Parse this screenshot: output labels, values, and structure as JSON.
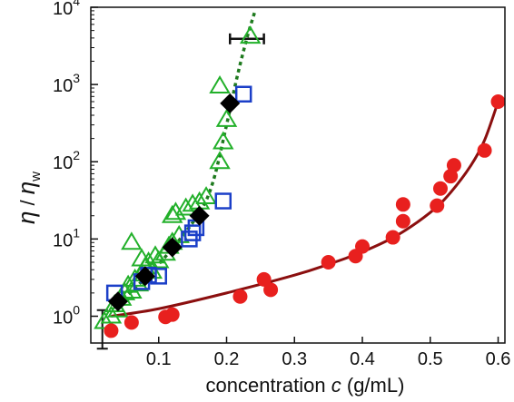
{
  "chart_data": {
    "type": "scatter",
    "xlabel_prefix": "concentration ",
    "xlabel_var": "c",
    "xlabel_suffix": " (g/mL)",
    "ylabel_num": "η",
    "ylabel_sep": " / ",
    "ylabel_den": "η",
    "ylabel_den_sub": "w",
    "xlim": [
      0.0,
      0.61
    ],
    "ylim": [
      0.45,
      10000
    ],
    "yscale": "log",
    "x_ticks": [
      {
        "value": 0.1,
        "label": "0.1"
      },
      {
        "value": 0.2,
        "label": "0.2"
      },
      {
        "value": 0.3,
        "label": "0.3"
      },
      {
        "value": 0.4,
        "label": "0.4"
      },
      {
        "value": 0.5,
        "label": "0.5"
      },
      {
        "value": 0.6,
        "label": "0.6"
      }
    ],
    "y_ticks": [
      {
        "value": 1,
        "base": "10",
        "exp": "0"
      },
      {
        "value": 10,
        "base": "10",
        "exp": "1"
      },
      {
        "value": 100,
        "base": "10",
        "exp": "2"
      },
      {
        "value": 1000,
        "base": "10",
        "exp": "3"
      },
      {
        "value": 10000,
        "base": "10",
        "exp": "4"
      }
    ],
    "grid": false,
    "legend": "none",
    "series": [
      {
        "marker": "circle",
        "color": "#e8201e",
        "points": [
          {
            "x": 0.03,
            "y": 0.65
          },
          {
            "x": 0.06,
            "y": 0.83
          },
          {
            "x": 0.11,
            "y": 0.98
          },
          {
            "x": 0.12,
            "y": 1.05
          },
          {
            "x": 0.22,
            "y": 1.8
          },
          {
            "x": 0.255,
            "y": 3.0
          },
          {
            "x": 0.265,
            "y": 2.2
          },
          {
            "x": 0.35,
            "y": 5.0
          },
          {
            "x": 0.39,
            "y": 6.0
          },
          {
            "x": 0.4,
            "y": 8.0
          },
          {
            "x": 0.445,
            "y": 10.5
          },
          {
            "x": 0.46,
            "y": 17
          },
          {
            "x": 0.46,
            "y": 28
          },
          {
            "x": 0.51,
            "y": 27
          },
          {
            "x": 0.515,
            "y": 45
          },
          {
            "x": 0.53,
            "y": 65
          },
          {
            "x": 0.535,
            "y": 90
          },
          {
            "x": 0.58,
            "y": 140
          },
          {
            "x": 0.6,
            "y": 600
          }
        ]
      },
      {
        "marker": "triangle",
        "color": "#22b02a",
        "points": [
          {
            "x": 0.02,
            "y": 0.85
          },
          {
            "x": 0.03,
            "y": 1.0
          },
          {
            "x": 0.035,
            "y": 1.4
          },
          {
            "x": 0.04,
            "y": 1.2
          },
          {
            "x": 0.045,
            "y": 1.7
          },
          {
            "x": 0.05,
            "y": 2.0
          },
          {
            "x": 0.055,
            "y": 2.5
          },
          {
            "x": 0.06,
            "y": 2.1
          },
          {
            "x": 0.065,
            "y": 3.0
          },
          {
            "x": 0.07,
            "y": 2.6
          },
          {
            "x": 0.075,
            "y": 3.5
          },
          {
            "x": 0.08,
            "y": 4.3
          },
          {
            "x": 0.085,
            "y": 5.0
          },
          {
            "x": 0.09,
            "y": 3.8
          },
          {
            "x": 0.095,
            "y": 6.0
          },
          {
            "x": 0.1,
            "y": 5.2
          },
          {
            "x": 0.11,
            "y": 6.5
          },
          {
            "x": 0.115,
            "y": 8.0
          },
          {
            "x": 0.12,
            "y": 9.0
          },
          {
            "x": 0.12,
            "y": 20
          },
          {
            "x": 0.125,
            "y": 22
          },
          {
            "x": 0.13,
            "y": 11
          },
          {
            "x": 0.14,
            "y": 25
          },
          {
            "x": 0.15,
            "y": 28
          },
          {
            "x": 0.16,
            "y": 30
          },
          {
            "x": 0.17,
            "y": 35
          },
          {
            "x": 0.19,
            "y": 100
          },
          {
            "x": 0.195,
            "y": 180
          },
          {
            "x": 0.2,
            "y": 350
          },
          {
            "x": 0.19,
            "y": 950
          },
          {
            "x": 0.235,
            "y": 4200
          },
          {
            "x": 0.06,
            "y": 9.0
          },
          {
            "x": 0.075,
            "y": 5.5
          }
        ]
      },
      {
        "marker": "square",
        "color": "#1b3fc8",
        "points": [
          {
            "x": 0.035,
            "y": 2.0
          },
          {
            "x": 0.075,
            "y": 2.8
          },
          {
            "x": 0.085,
            "y": 3.4
          },
          {
            "x": 0.1,
            "y": 3.3
          },
          {
            "x": 0.145,
            "y": 10
          },
          {
            "x": 0.15,
            "y": 12
          },
          {
            "x": 0.155,
            "y": 14
          },
          {
            "x": 0.195,
            "y": 31
          },
          {
            "x": 0.225,
            "y": 750
          }
        ]
      },
      {
        "marker": "diamond",
        "color": "#000000",
        "points": [
          {
            "x": 0.04,
            "y": 1.55
          },
          {
            "x": 0.08,
            "y": 3.3
          },
          {
            "x": 0.12,
            "y": 7.8
          },
          {
            "x": 0.16,
            "y": 20
          },
          {
            "x": 0.205,
            "y": 570
          }
        ]
      }
    ],
    "fit_curves": [
      {
        "style": "solid",
        "color": "#8b0f0f",
        "points": [
          {
            "x": 0.03,
            "y": 1.0
          },
          {
            "x": 0.1,
            "y": 1.25
          },
          {
            "x": 0.2,
            "y": 2.0
          },
          {
            "x": 0.3,
            "y": 3.4
          },
          {
            "x": 0.35,
            "y": 4.7
          },
          {
            "x": 0.4,
            "y": 6.8
          },
          {
            "x": 0.45,
            "y": 11
          },
          {
            "x": 0.5,
            "y": 22
          },
          {
            "x": 0.53,
            "y": 40
          },
          {
            "x": 0.56,
            "y": 90
          },
          {
            "x": 0.58,
            "y": 190
          },
          {
            "x": 0.6,
            "y": 600
          }
        ]
      },
      {
        "style": "dotted",
        "color": "#1e7a1e",
        "points": [
          {
            "x": 0.04,
            "y": 1.45
          },
          {
            "x": 0.08,
            "y": 3.1
          },
          {
            "x": 0.12,
            "y": 7.5
          },
          {
            "x": 0.16,
            "y": 22
          },
          {
            "x": 0.18,
            "y": 55
          },
          {
            "x": 0.2,
            "y": 300
          },
          {
            "x": 0.215,
            "y": 1200
          },
          {
            "x": 0.23,
            "y": 4000
          },
          {
            "x": 0.242,
            "y": 9000
          }
        ]
      }
    ],
    "error_bars": [
      {
        "orientation": "vertical",
        "x": 0.017,
        "y_low": 0.38,
        "y_high": 1.2
      },
      {
        "orientation": "horizontal",
        "y": 3900,
        "x_low": 0.205,
        "x_high": 0.255
      }
    ]
  }
}
